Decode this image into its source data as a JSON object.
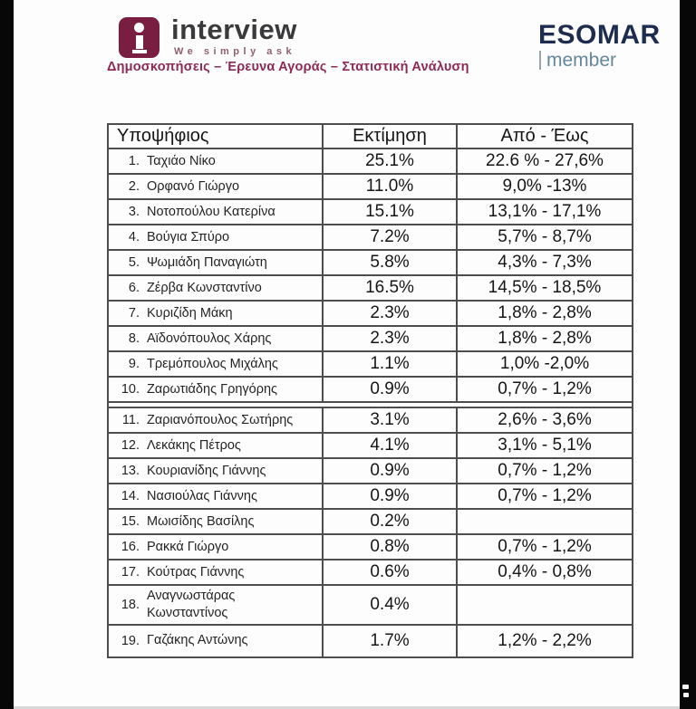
{
  "page": {
    "background": "#fdfdfd",
    "pillarbox_color": "#070707",
    "table_border_color": "#4d4d4d"
  },
  "header": {
    "interview_logo": {
      "brand": "interview",
      "tagline": "We simply ask",
      "subtitle": "Δημοσκοπήσεις – Έρευνα Αγοράς – Στατιστική Ανάλυση",
      "brand_color": "#7a1e41",
      "subtitle_color": "#8c2a55"
    },
    "esomar_logo": {
      "name": "ESOMAR",
      "membership": "member",
      "name_color": "#1d2c4f",
      "membership_color": "#64879b"
    }
  },
  "table": {
    "headers": [
      "Υποψήφιος",
      "Εκτίμηση",
      "Από - Έως"
    ],
    "gap_after_row": 10,
    "rows": [
      {
        "num": "1.",
        "name": "Ταχιάο Νίκο",
        "estimate": "25.1%",
        "range": "22.6 % - 27,6%"
      },
      {
        "num": "2.",
        "name": "Ορφανό Γιώργο",
        "estimate": "11.0%",
        "range": "9,0% -13%"
      },
      {
        "num": "3.",
        "name": "Νοτοπούλου Κατερίνα",
        "estimate": "15.1%",
        "range": "13,1% - 17,1%"
      },
      {
        "num": "4.",
        "name": "Βούγια Σπύρο",
        "estimate": "7.2%",
        "range": "5,7% - 8,7%"
      },
      {
        "num": "5.",
        "name": "Ψωμιάδη Παναγιώτη",
        "estimate": "5.8%",
        "range": "4,3% - 7,3%"
      },
      {
        "num": "6.",
        "name": "Ζέρβα Κωνσταντίνο",
        "estimate": "16.5%",
        "range": "14,5% - 18,5%"
      },
      {
        "num": "7.",
        "name": "Κυριζίδη Μάκη",
        "estimate": "2.3%",
        "range": "1,8% - 2,8%"
      },
      {
        "num": "8.",
        "name": "Αϊδονόπουλος Χάρης",
        "estimate": "2.3%",
        "range": "1,8% - 2,8%"
      },
      {
        "num": "9.",
        "name": "Τρεμόπουλος Μιχάλης",
        "estimate": "1.1%",
        "range": "1,0% -2,0%"
      },
      {
        "num": "10.",
        "name": "Ζαρωτιάδης Γρηγόρης",
        "estimate": "0.9%",
        "range": "0,7% - 1,2%"
      },
      {
        "num": "11.",
        "name": "Ζαριανόπουλος Σωτήρης",
        "estimate": "3.1%",
        "range": "2,6% - 3,6%"
      },
      {
        "num": "12.",
        "name": "Λεκάκης Πέτρος",
        "estimate": "4.1%",
        "range": "3,1% - 5,1%"
      },
      {
        "num": "13.",
        "name": "Κουριανίδης Γιάννης",
        "estimate": "0.9%",
        "range": "0,7% - 1,2%"
      },
      {
        "num": "14.",
        "name": "Νασιούλας Γιάννης",
        "estimate": "0.9%",
        "range": "0,7% - 1,2%"
      },
      {
        "num": "15.",
        "name": "Μωισίδης Βασίλης",
        "estimate": "0.2%",
        "range": ""
      },
      {
        "num": "16.",
        "name": "Ρακκά Γιώργο",
        "estimate": "0.8%",
        "range": "0,7% - 1,2%"
      },
      {
        "num": "17.",
        "name": "Κούτρας Γιάννης",
        "estimate": "0.6%",
        "range": "0,4% - 0,8%"
      },
      {
        "num": "18.",
        "name": "Αναγνωστάρας\nΚωνσταντίνος",
        "estimate": "0.4%",
        "range": "",
        "tall": true
      },
      {
        "num": "19.",
        "name": "Γαζάκης Αντώνης",
        "estimate": "1.7%",
        "range": "1,2% - 2,2%",
        "tall": true
      }
    ]
  }
}
